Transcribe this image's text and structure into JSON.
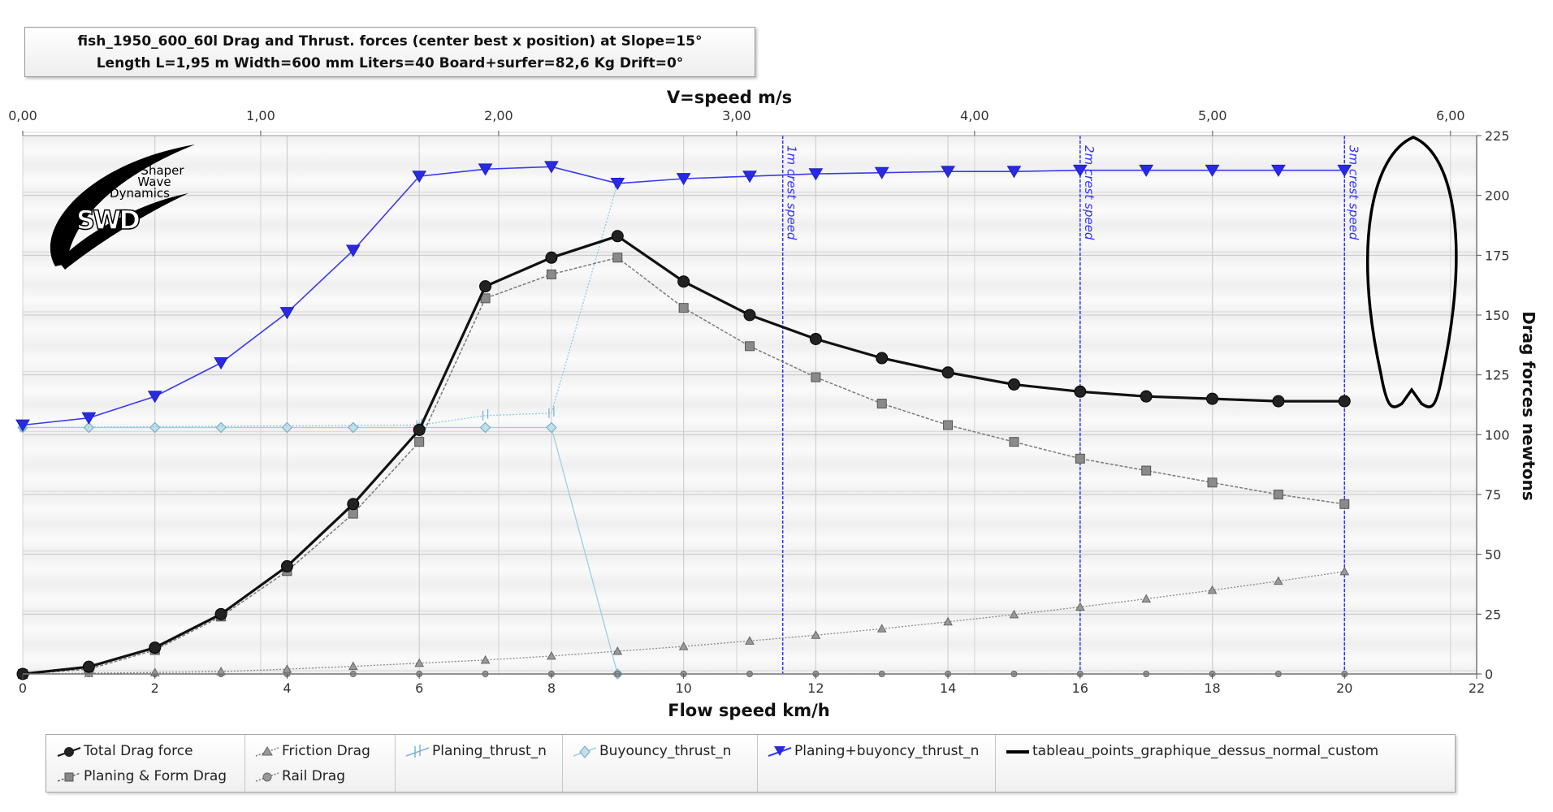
{
  "title_lines": [
    "fish_1950_600_60l Drag and  Thrust. forces (center best x position) at  Slope=15°",
    "Length L=1,95 m Width=600 mm Liters=40 Board+surfer=82,6 Kg Drift=0°"
  ],
  "logo": {
    "lines": [
      "Shaper",
      "Wave",
      "Dynamics"
    ],
    "mark": "SWD"
  },
  "colors": {
    "total": "#111111",
    "planing": "#7a7a7a",
    "friction": "#8a8a8a",
    "rail": "#8a8a8a",
    "planing_thrust": "#8fc8de",
    "buoyancy": "#9ecfe0",
    "sum_thrust": "#3a3af0",
    "crest": "#3232ff",
    "outline": "#000000"
  },
  "chart_data": {
    "type": "line",
    "title": "fish_1950_600_60l Drag and  Thrust. forces (center best x position) at  Slope=15°",
    "xlabel": "Flow speed km/h",
    "x2label": "V=speed m/s",
    "ylabel": "Drag forces newtons",
    "xlim": [
      0,
      22
    ],
    "x2lim": [
      0,
      6.11
    ],
    "ylim": [
      0,
      225
    ],
    "xticks": [
      "0",
      "2",
      "4",
      "6",
      "8",
      "10",
      "12",
      "14",
      "16",
      "18",
      "20",
      "22"
    ],
    "x2ticks": [
      "0,00",
      "1,00",
      "2,00",
      "3,00",
      "4,00",
      "5,00",
      "6,00"
    ],
    "yticks": [
      "0",
      "25",
      "50",
      "75",
      "100",
      "125",
      "150",
      "175",
      "200",
      "225"
    ],
    "grid": true,
    "legend_position": "bottom",
    "vlines": [
      {
        "x": 11.5,
        "label": "1m crest speed"
      },
      {
        "x": 16,
        "label": "2m crest speed"
      },
      {
        "x": 20,
        "label": "3m crest speed"
      }
    ],
    "series": [
      {
        "name": "Total Drag force",
        "x": [
          0,
          1,
          2,
          3,
          4,
          5,
          6,
          7,
          8,
          9,
          10,
          11,
          12,
          13,
          14,
          15,
          16,
          17,
          18,
          19,
          20
        ],
        "values": [
          0,
          3,
          11,
          25,
          45,
          71,
          102,
          162,
          174,
          183,
          164,
          150,
          140,
          132,
          126,
          121,
          118,
          116,
          115,
          114,
          114
        ]
      },
      {
        "name": "Planing & Form Drag",
        "x": [
          0,
          1,
          2,
          3,
          4,
          5,
          6,
          7,
          8,
          9,
          10,
          11,
          12,
          13,
          14,
          15,
          16,
          17,
          18,
          19,
          20
        ],
        "values": [
          0,
          2,
          10,
          24,
          43,
          67,
          97,
          157,
          167,
          174,
          153,
          137,
          124,
          113,
          104,
          97,
          90,
          85,
          80,
          75,
          71
        ]
      },
      {
        "name": "Friction Drag",
        "x": [
          0,
          1,
          2,
          3,
          4,
          5,
          6,
          7,
          8,
          9,
          10,
          11,
          12,
          13,
          14,
          15,
          16,
          17,
          18,
          19,
          20
        ],
        "values": [
          0,
          0.3,
          0.6,
          1,
          2,
          3.2,
          4.5,
          5.8,
          7.5,
          9.5,
          11.5,
          13.8,
          16.2,
          18.9,
          21.8,
          24.8,
          28,
          31.4,
          35,
          38.8,
          42.8
        ]
      },
      {
        "name": "Rail Drag",
        "x": [
          0,
          1,
          2,
          3,
          4,
          5,
          6,
          7,
          8,
          9,
          10,
          11,
          12,
          13,
          14,
          15,
          16,
          17,
          18,
          19,
          20
        ],
        "values": [
          0,
          0,
          0,
          0,
          0,
          0,
          0,
          0,
          0,
          0,
          0,
          0,
          0,
          0,
          0,
          0,
          0,
          0,
          0,
          0,
          0
        ]
      },
      {
        "name": "Planing_thrust_n",
        "x": [
          0,
          6,
          7,
          8,
          9
        ],
        "values": [
          103,
          104,
          108,
          109,
          205
        ]
      },
      {
        "name": "Buyouncy_thrust_n",
        "x": [
          0,
          1,
          2,
          3,
          4,
          5,
          6,
          7,
          8,
          9
        ],
        "values": [
          103,
          103,
          103,
          103,
          103,
          103,
          103,
          103,
          103,
          0
        ]
      },
      {
        "name": "Planing+buyoncy_thrust_n",
        "x": [
          0,
          1,
          2,
          3,
          4,
          5,
          6,
          7,
          8,
          9,
          10,
          11,
          12,
          13,
          14,
          15,
          16,
          17,
          18,
          19,
          20
        ],
        "values": [
          104,
          107,
          116,
          130,
          151,
          177,
          208,
          211,
          212,
          205,
          207,
          208,
          209,
          209.5,
          210,
          210,
          210.5,
          210.5,
          210.5,
          210.5,
          210.5
        ]
      },
      {
        "name": "tableau_points_graphique_dessus_normal_custom"
      }
    ]
  }
}
